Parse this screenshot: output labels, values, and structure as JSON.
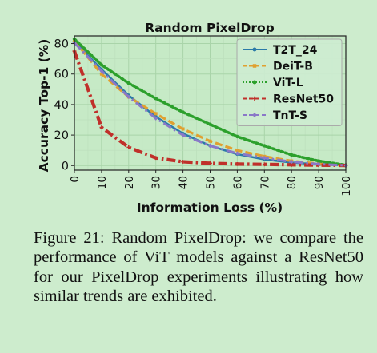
{
  "chart_data": {
    "type": "line",
    "title": "Random PixelDrop",
    "xlabel": "Information Loss (%)",
    "ylabel": "Accuracy Top-1 (%)",
    "xlim": [
      0,
      100
    ],
    "ylim": [
      -3,
      85
    ],
    "xticks": [
      0,
      10,
      20,
      30,
      40,
      50,
      60,
      70,
      80,
      90,
      100
    ],
    "yticks": [
      0,
      20,
      40,
      60,
      80
    ],
    "grid": true,
    "legend": "top-right",
    "x": [
      0,
      10,
      20,
      30,
      40,
      50,
      60,
      70,
      80,
      90,
      100
    ],
    "series": [
      {
        "name": "T2T_24",
        "color": "#2a7aa8",
        "dash": "solid",
        "marker": "circle",
        "values": [
          81.5,
          63,
          46,
          32,
          21,
          13,
          7.5,
          4,
          2,
          0.8,
          0.1
        ]
      },
      {
        "name": "DeiT-B",
        "color": "#e0a030",
        "dash": "dashed",
        "marker": "square",
        "values": [
          81.8,
          60,
          45,
          34,
          24,
          16,
          10,
          6,
          3,
          1.2,
          0.1
        ]
      },
      {
        "name": "ViT-L",
        "color": "#2ca02c",
        "dash": "dotted",
        "marker": "circle",
        "values": [
          83,
          66,
          54,
          44,
          35,
          27,
          19,
          13,
          7,
          3,
          0.3
        ]
      },
      {
        "name": "ResNet50",
        "color": "#c0302a",
        "dash": "dashdot",
        "marker": "plus",
        "values": [
          75,
          25,
          12,
          5,
          2.5,
          1.5,
          1,
          0.8,
          0.5,
          0.3,
          0.1
        ]
      },
      {
        "name": "TnT-S",
        "color": "#8a78c8",
        "dash": "dashdot",
        "marker": "diamond",
        "values": [
          80.5,
          62,
          45,
          31,
          20,
          13,
          8,
          5,
          2.5,
          1,
          0.1
        ]
      }
    ]
  },
  "caption": "Figure 21: Random PixelDrop: we compare the performance of ViT models against a ResNet50 for our PixelDrop experiments illustrating how similar trends are exhibited."
}
